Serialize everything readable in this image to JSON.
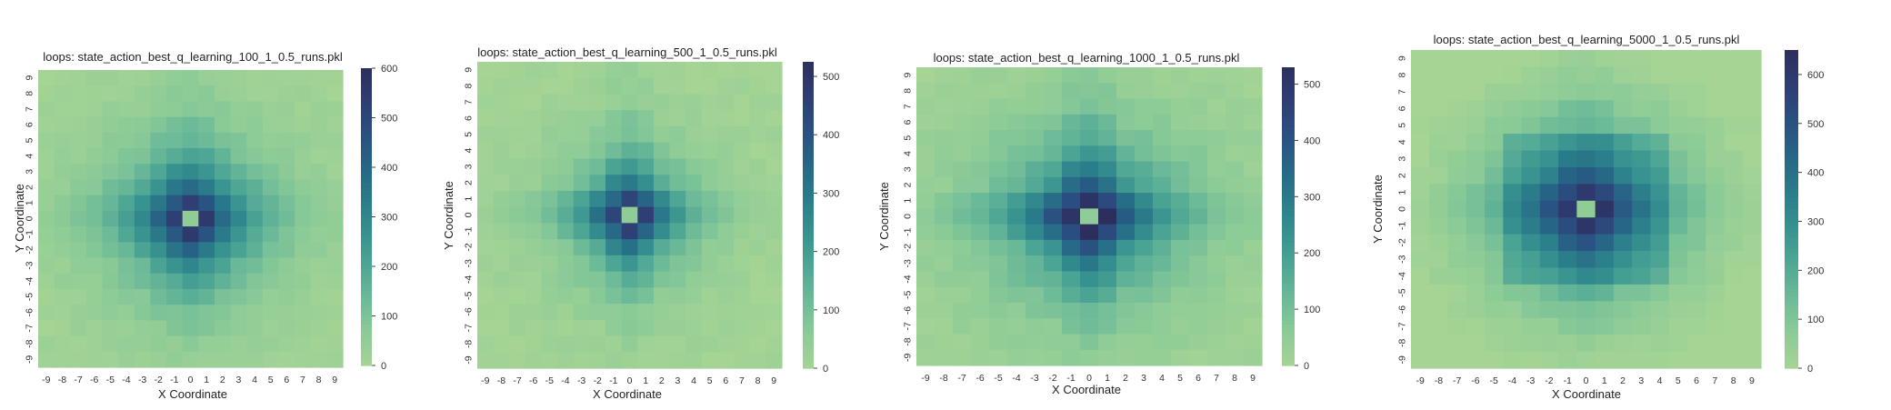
{
  "chart_data": [
    {
      "type": "heatmap",
      "title": "loops: state_action_best_q_learning_100_1_0.5_runs.pkl",
      "xlabel": "X Coordinate",
      "ylabel": "Y Coordinate",
      "x_ticks": [
        "-9",
        "-8",
        "-7",
        "-6",
        "-5",
        "-4",
        "-3",
        "-2",
        "-1",
        "0",
        "1",
        "2",
        "3",
        "4",
        "5",
        "6",
        "7",
        "8",
        "9"
      ],
      "y_ticks": [
        "9",
        "8",
        "7",
        "6",
        "5",
        "4",
        "3",
        "2",
        "1",
        "0",
        "-1",
        "-2",
        "-3",
        "-4",
        "-5",
        "-6",
        "-7",
        "-8",
        "-9"
      ],
      "grid": false,
      "colorbar": {
        "min": 0,
        "max": 600,
        "ticks": [
          "0",
          "100",
          "200",
          "300",
          "400",
          "500",
          "600"
        ]
      },
      "pattern": {
        "peak": 580,
        "cross_width": 2.0,
        "cross_arm": 160,
        "blob": 0.33,
        "cross_falloff": 0.23,
        "center_value": 55
      }
    },
    {
      "type": "heatmap",
      "title": "loops: state_action_best_q_learning_500_1_0.5_runs.pkl",
      "xlabel": "X Coordinate",
      "ylabel": "Y Coordinate",
      "x_ticks": [
        "-9",
        "-8",
        "-7",
        "-6",
        "-5",
        "-4",
        "-3",
        "-2",
        "-1",
        "0",
        "1",
        "2",
        "3",
        "4",
        "5",
        "6",
        "7",
        "8",
        "9"
      ],
      "y_ticks": [
        "9",
        "8",
        "7",
        "6",
        "5",
        "4",
        "3",
        "2",
        "1",
        "0",
        "-1",
        "-2",
        "-3",
        "-4",
        "-5",
        "-6",
        "-7",
        "-8",
        "-9"
      ],
      "grid": false,
      "colorbar": {
        "min": 0,
        "max": 525,
        "ticks": [
          "0",
          "100",
          "200",
          "300",
          "400",
          "500"
        ]
      },
      "pattern": {
        "peak": 510,
        "cross_width": 1.3,
        "cross_arm": 150,
        "blob": 0.42,
        "cross_falloff": 0.25,
        "center_value": 50
      }
    },
    {
      "type": "heatmap",
      "title": "loops: state_action_best_q_learning_1000_1_0.5_runs.pkl",
      "xlabel": "X Coordinate",
      "ylabel": "Y Coordinate",
      "x_ticks": [
        "-9",
        "-8",
        "-7",
        "-6",
        "-5",
        "-4",
        "-3",
        "-2",
        "-1",
        "0",
        "1",
        "2",
        "3",
        "4",
        "5",
        "6",
        "7",
        "8",
        "9"
      ],
      "y_ticks": [
        "9",
        "8",
        "7",
        "6",
        "5",
        "4",
        "3",
        "2",
        "1",
        "0",
        "-1",
        "-2",
        "-3",
        "-4",
        "-5",
        "-6",
        "-7",
        "-8",
        "-9"
      ],
      "grid": false,
      "colorbar": {
        "min": 0,
        "max": 530,
        "ticks": [
          "0",
          "100",
          "200",
          "300",
          "400",
          "500"
        ]
      },
      "pattern": {
        "peak": 520,
        "cross_width": 1.6,
        "cross_arm": 170,
        "blob": 0.3,
        "cross_falloff": 0.22,
        "center_value": 50
      }
    },
    {
      "type": "heatmap",
      "title": "loops: state_action_best_q_learning_5000_1_0.5_runs.pkl",
      "xlabel": "X Coordinate",
      "ylabel": "Y Coordinate",
      "x_ticks": [
        "-9",
        "-8",
        "-7",
        "-6",
        "-5",
        "-4",
        "-3",
        "-2",
        "-1",
        "0",
        "1",
        "2",
        "3",
        "4",
        "5",
        "6",
        "7",
        "8",
        "9"
      ],
      "y_ticks": [
        "9",
        "8",
        "7",
        "6",
        "5",
        "4",
        "3",
        "2",
        "1",
        "0",
        "-1",
        "-2",
        "-3",
        "-4",
        "-5",
        "-6",
        "-7",
        "-8",
        "-9"
      ],
      "grid": false,
      "colorbar": {
        "min": 0,
        "max": 650,
        "ticks": [
          "0",
          "100",
          "200",
          "300",
          "400",
          "500",
          "600"
        ]
      },
      "pattern": {
        "peak": 640,
        "cross_width": 1.8,
        "cross_arm": 120,
        "blob": 0.22,
        "cross_falloff": 0.25,
        "center_value": 60,
        "box_radius": 4,
        "box_drop": 150
      }
    }
  ],
  "colormap": {
    "name": "crest",
    "stops": [
      "#a5d494",
      "#8ccb97",
      "#6cba98",
      "#4ea694",
      "#37918f",
      "#2a7c8a",
      "#276686",
      "#2a5081",
      "#2f3e74",
      "#2c2f5e"
    ]
  }
}
